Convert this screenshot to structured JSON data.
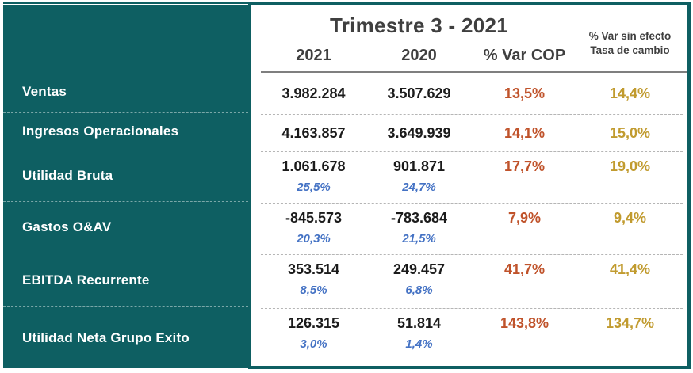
{
  "colors": {
    "teal": "#0e5f62",
    "value_text": "#1b1b1b",
    "margin_blue": "#4472c4",
    "var_cop_rust": "#c0532b",
    "var_fx_gold": "#c19b2f",
    "header_gray": "#3f3f3f"
  },
  "header": {
    "title": "Trimestre 3 - 2021",
    "col_2021": "2021",
    "col_2020": "2020",
    "col_var_cop": "% Var COP",
    "col_var_fx_line1": "% Var sin efecto",
    "col_var_fx_line2": "Tasa de cambio"
  },
  "rows": [
    {
      "label": "Ventas",
      "v2021": "3.982.284",
      "v2020": "3.507.629",
      "var_cop": "13,5%",
      "var_fx": "14,4%"
    },
    {
      "label": "Ingresos Operacionales",
      "v2021": "4.163.857",
      "v2020": "3.649.939",
      "var_cop": "14,1%",
      "var_fx": "15,0%"
    },
    {
      "label": "Utilidad Bruta",
      "v2021": "1.061.678",
      "m2021": "25,5%",
      "v2020": "901.871",
      "m2020": "24,7%",
      "var_cop": "17,7%",
      "var_fx": "19,0%"
    },
    {
      "label": "Gastos O&AV",
      "v2021": "-845.573",
      "m2021": "20,3%",
      "v2020": "-783.684",
      "m2020": "21,5%",
      "var_cop": "7,9%",
      "var_fx": "9,4%"
    },
    {
      "label": "EBITDA Recurrente",
      "v2021": "353.514",
      "m2021": "8,5%",
      "v2020": "249.457",
      "m2020": "6,8%",
      "var_cop": "41,7%",
      "var_fx": "41,4%"
    },
    {
      "label": "Utilidad Neta Grupo Exito",
      "v2021": "126.315",
      "m2021": "3,0%",
      "v2020": "51.814",
      "m2020": "1,4%",
      "var_cop": "143,8%",
      "var_fx": "134,7%"
    }
  ],
  "chart_data": {
    "type": "table",
    "title": "Trimestre 3 - 2021",
    "columns": [
      "",
      "2021",
      "2020",
      "% Var COP",
      "% Var sin efecto Tasa de cambio"
    ],
    "rows": [
      {
        "label": "Ventas",
        "y2021": 3982284,
        "y2020": 3507629,
        "var_cop_pct": 13.5,
        "var_fx_pct": 14.4
      },
      {
        "label": "Ingresos Operacionales",
        "y2021": 4163857,
        "y2020": 3649939,
        "var_cop_pct": 14.1,
        "var_fx_pct": 15.0
      },
      {
        "label": "Utilidad Bruta",
        "y2021": 1061678,
        "y2020": 901871,
        "margin_2021_pct": 25.5,
        "margin_2020_pct": 24.7,
        "var_cop_pct": 17.7,
        "var_fx_pct": 19.0
      },
      {
        "label": "Gastos O&AV",
        "y2021": -845573,
        "y2020": -783684,
        "margin_2021_pct": 20.3,
        "margin_2020_pct": 21.5,
        "var_cop_pct": 7.9,
        "var_fx_pct": 9.4
      },
      {
        "label": "EBITDA Recurrente",
        "y2021": 353514,
        "y2020": 249457,
        "margin_2021_pct": 8.5,
        "margin_2020_pct": 6.8,
        "var_cop_pct": 41.7,
        "var_fx_pct": 41.4
      },
      {
        "label": "Utilidad Neta Grupo Exito",
        "y2021": 126315,
        "y2020": 51814,
        "margin_2021_pct": 3.0,
        "margin_2020_pct": 1.4,
        "var_cop_pct": 143.8,
        "var_fx_pct": 134.7
      }
    ]
  }
}
